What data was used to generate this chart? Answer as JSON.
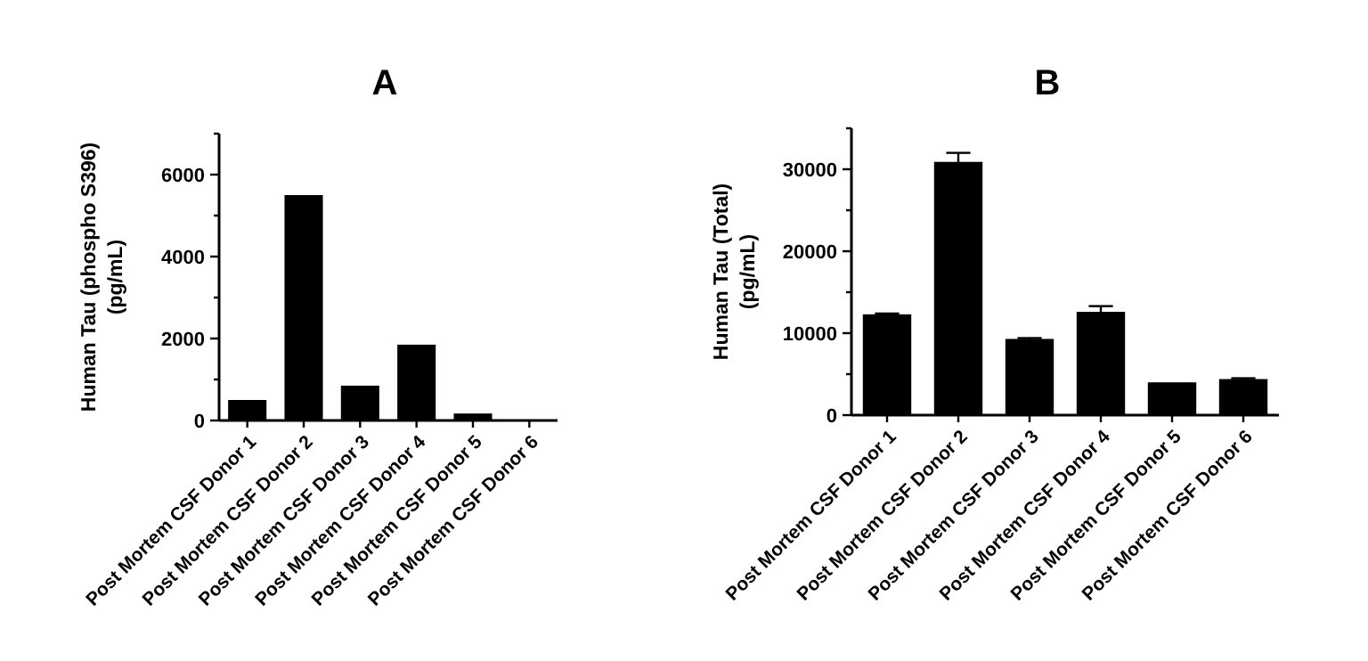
{
  "chart_data": [
    {
      "type": "bar",
      "title": "A",
      "ylabel": "Human Tau (phospho S396)\n(pg/mL)",
      "categories": [
        "Post Mortem CSF Donor 1",
        "Post Mortem CSF Donor 2",
        "Post Mortem CSF Donor 3",
        "Post Mortem CSF Donor 4",
        "Post Mortem CSF Donor 5",
        "Post Mortem CSF Donor 6"
      ],
      "values": [
        500,
        5500,
        850,
        1850,
        170,
        0
      ],
      "color": "#000000",
      "ylim": [
        0,
        7000
      ],
      "yticks": [
        0,
        {
          "value": 1000,
          "label": null
        },
        2000,
        {
          "value": 3000,
          "label": null
        },
        4000,
        {
          "value": 5000,
          "label": null
        },
        6000,
        {
          "value": 7000,
          "label": null
        }
      ]
    },
    {
      "type": "bar",
      "title": "B",
      "ylabel": "Human Tau (Total)\n(pg/mL)",
      "categories": [
        "Post Mortem CSF Donor 1",
        "Post Mortem CSF Donor 2",
        "Post Mortem CSF Donor 3",
        "Post Mortem CSF Donor 4",
        "Post Mortem CSF Donor 5",
        "Post Mortem CSF Donor 6"
      ],
      "values": [
        12300,
        30900,
        9300,
        12600,
        4000,
        4400
      ],
      "errors": [
        100,
        1100,
        100,
        700,
        null,
        100
      ],
      "color": "#000000",
      "ylim": [
        0,
        35000
      ],
      "yticks": [
        0,
        {
          "value": 5000,
          "label": null
        },
        10000,
        {
          "value": 15000,
          "label": null
        },
        20000,
        {
          "value": 25000,
          "label": null
        },
        30000,
        {
          "value": 35000,
          "label": null
        }
      ]
    }
  ]
}
